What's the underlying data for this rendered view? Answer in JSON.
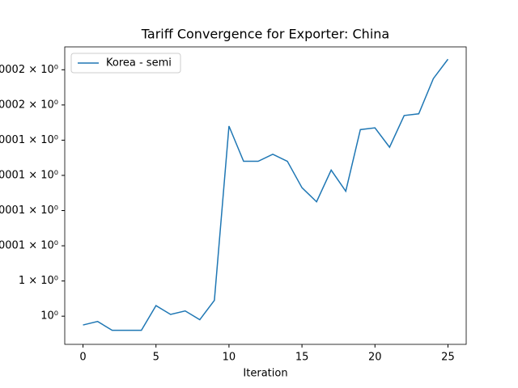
{
  "chart_data": {
    "type": "line",
    "title": "Tariff Convergence for Exporter: China",
    "x_label": "Iteration",
    "x": [
      0,
      1,
      2,
      3,
      4,
      5,
      6,
      7,
      8,
      9,
      10,
      11,
      12,
      13,
      14,
      15,
      16,
      17,
      18,
      19,
      20,
      21,
      22,
      23,
      24,
      25
    ],
    "series": [
      {
        "name": "Korea - semi",
        "color": "#1f77b4",
        "values": [
          0.99999995,
          0.99999997,
          0.99999992,
          0.99999992,
          0.99999992,
          1.00000006,
          1.00000001,
          1.00000003,
          0.99999998,
          1.00000009,
          1.00000108,
          1.00000088,
          1.00000088,
          1.00000092,
          1.00000088,
          1.00000073,
          1.00000065,
          1.00000083,
          1.00000071,
          1.00000106,
          1.00000107,
          1.00000096,
          1.00000114,
          1.00000115,
          1.00000135,
          1.00000146
        ]
      }
    ],
    "log_scale": true,
    "xlim": [
      -1.25,
      26.25
    ],
    "xticks": [
      0,
      5,
      10,
      15,
      20,
      25
    ],
    "ylim": [
      0.99999984,
      1.00000153
    ],
    "yticks": [
      {
        "value": 1.0,
        "label": "10⁰"
      },
      {
        "value": 1.0000002,
        "label": "1 × 10⁰"
      },
      {
        "value": 1.0000004,
        "label": "0001 × 10⁰"
      },
      {
        "value": 1.0000006,
        "label": "0001 × 10⁰"
      },
      {
        "value": 1.0000008,
        "label": "0001 × 10⁰"
      },
      {
        "value": 1.000001,
        "label": "0001 × 10⁰"
      },
      {
        "value": 1.0000012,
        "label": "0002 × 10⁰"
      },
      {
        "value": 1.0000014,
        "label": "0002 × 10⁰"
      }
    ],
    "legend": "upper left"
  }
}
